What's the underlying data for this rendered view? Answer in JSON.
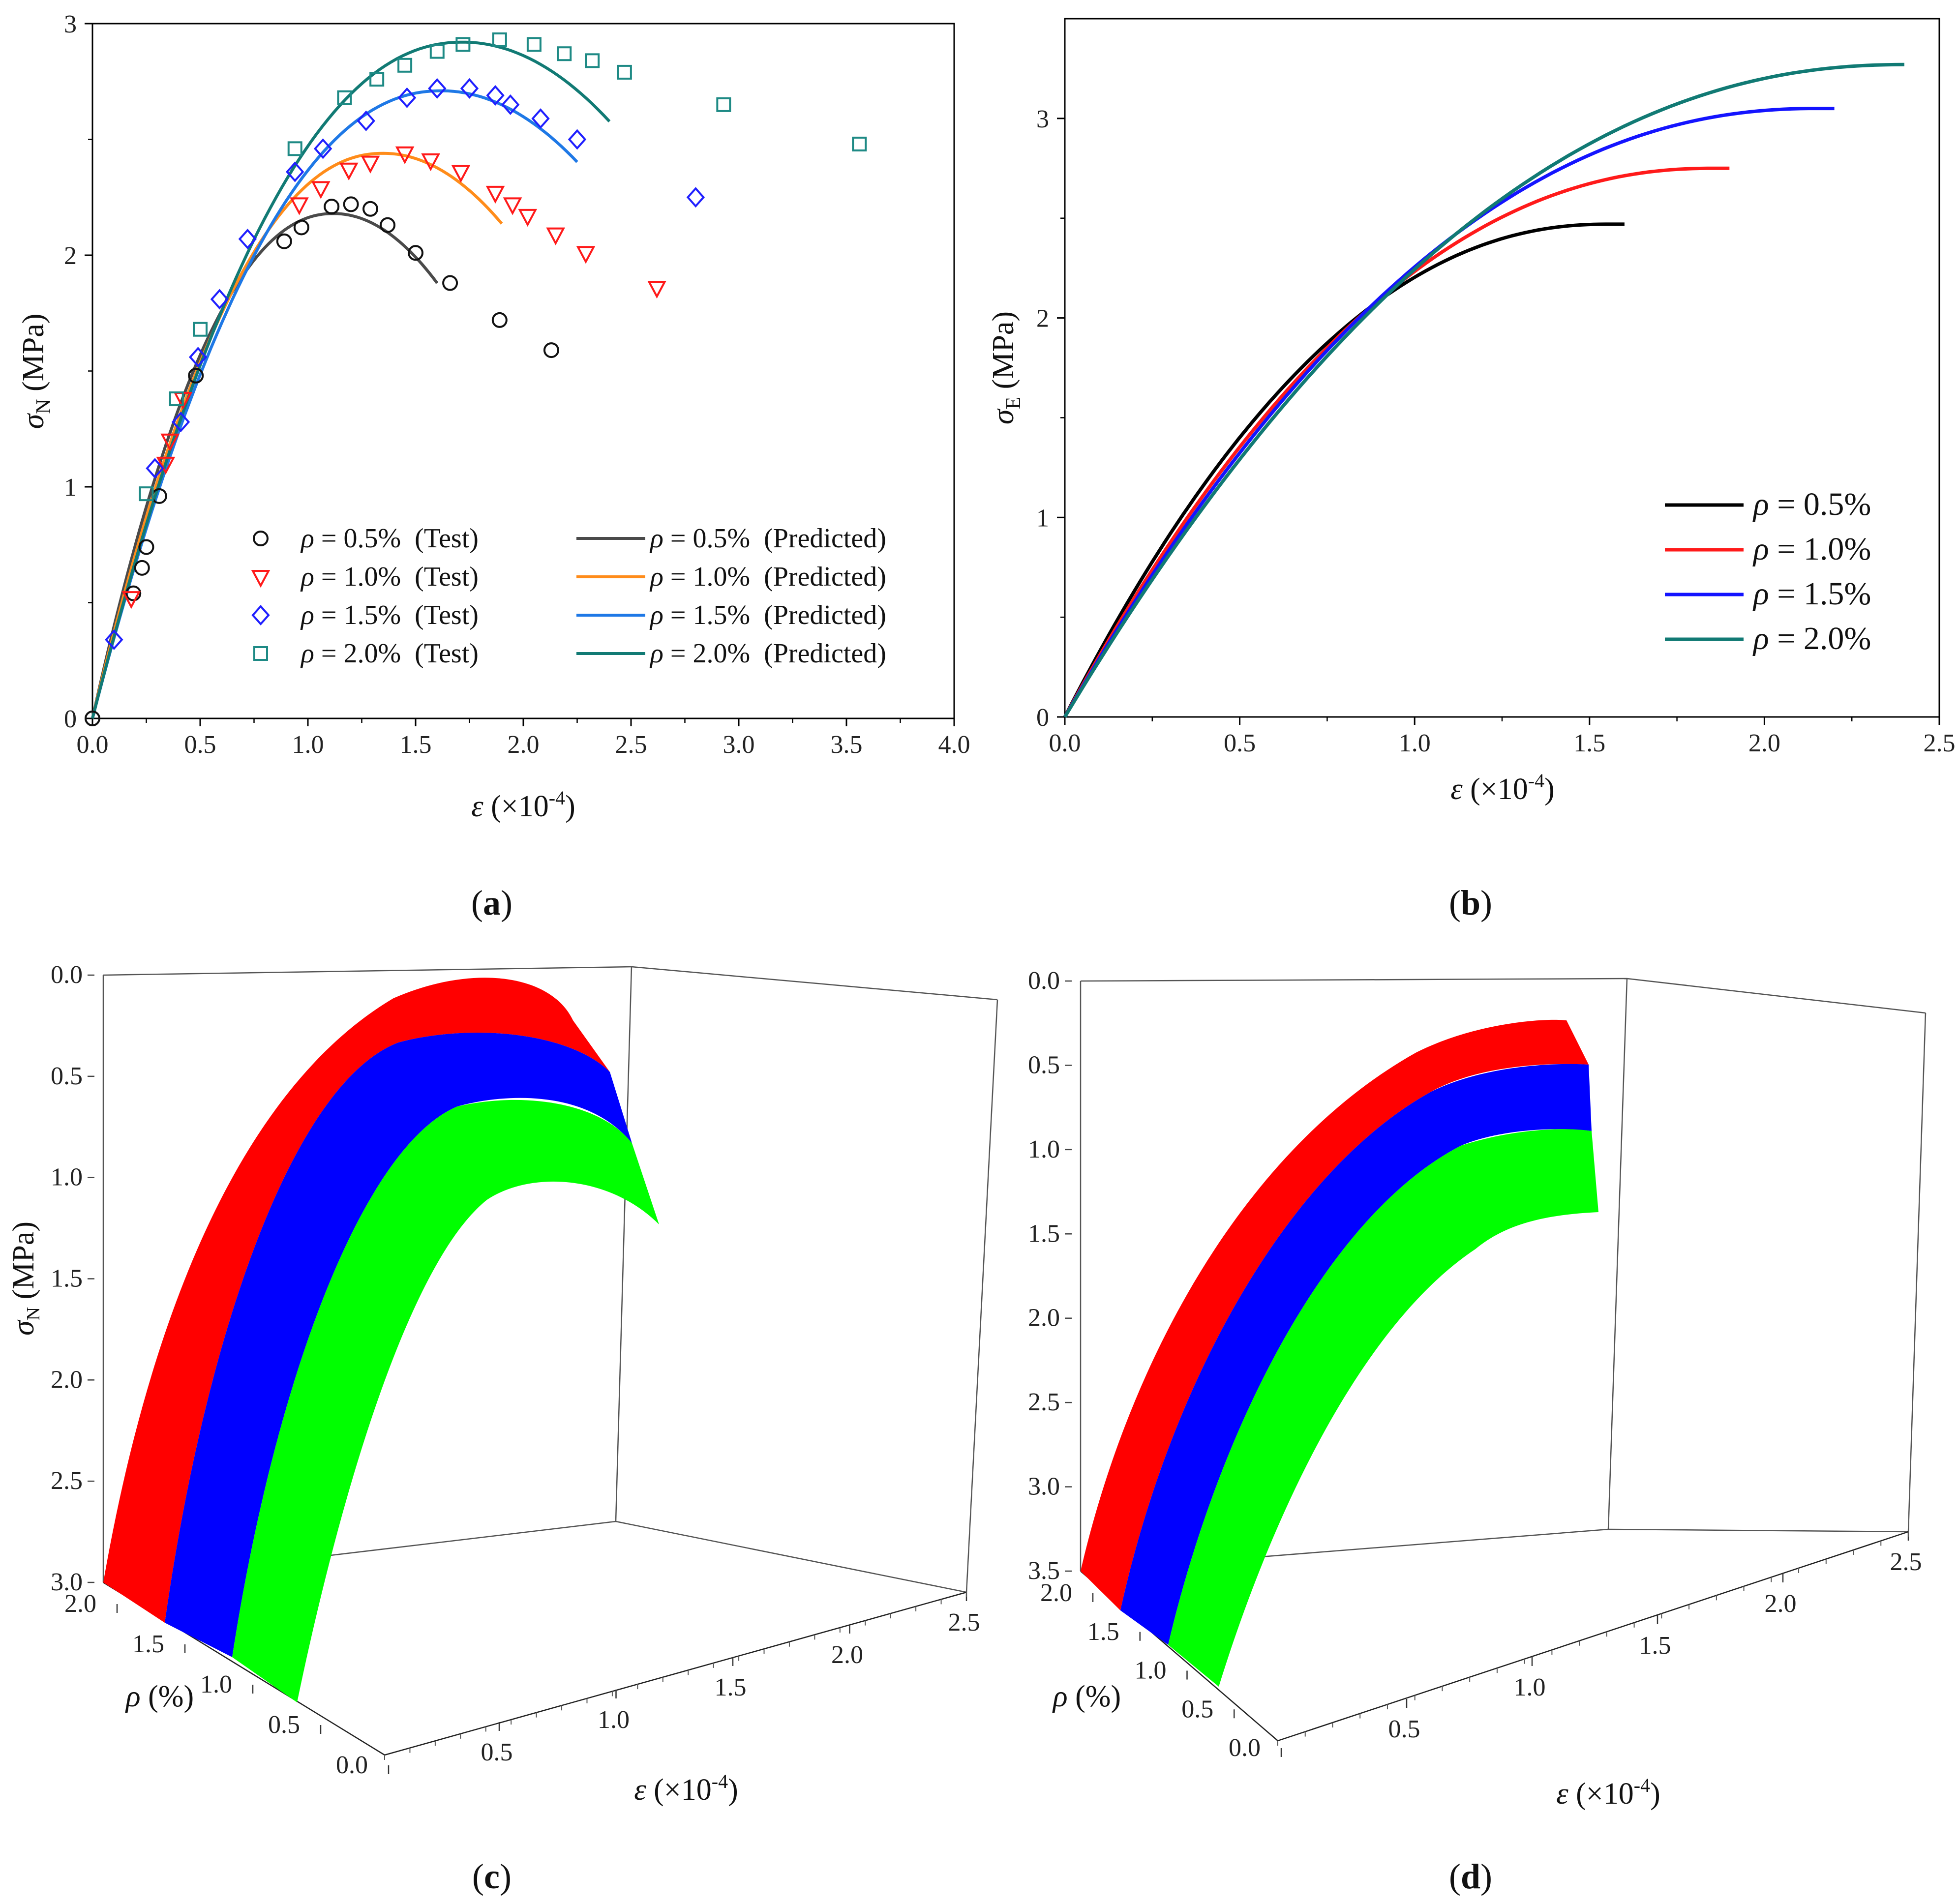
{
  "figure": {
    "panels": [
      {
        "id": "a",
        "label_open": "(",
        "label_letter": "a",
        "label_close": ")"
      },
      {
        "id": "b",
        "label_open": "(",
        "label_letter": "b",
        "label_close": ")"
      },
      {
        "id": "c",
        "label_open": "(",
        "label_letter": "c",
        "label_close": ")"
      },
      {
        "id": "d",
        "label_open": "(",
        "label_letter": "d",
        "label_close": ")"
      }
    ]
  },
  "chart_data": [
    {
      "id": "a",
      "type": "scatter",
      "xlabel": {
        "sym": "ε",
        "pre": " (×10",
        "sup": "-4",
        "post": ")"
      },
      "ylabel": {
        "sym": "σ",
        "sub": "N",
        "post": " (MPa)"
      },
      "xlim": [
        0,
        4.0
      ],
      "ylim": [
        0,
        3
      ],
      "xticks": [
        "0.0",
        "0.5",
        "1.0",
        "1.5",
        "2.0",
        "2.5",
        "3.0",
        "3.5",
        "4.0"
      ],
      "yticks": [
        "0",
        "1",
        "2",
        "3"
      ],
      "colors": {
        "test_0.5": "#111111",
        "test_1.0": "#ff1a1a",
        "test_1.5": "#1f1fff",
        "test_2.0": "#1e8a85",
        "pred_0.5": "#4a4a4a",
        "pred_1.0": "#ff8c1a",
        "pred_1.5": "#1e78e6",
        "pred_2.0": "#117a74"
      },
      "legend": [
        {
          "key": "test_0.5",
          "rho": "ρ",
          "text": " = 0.5%  (Test)",
          "marker": "circle"
        },
        {
          "key": "test_1.0",
          "rho": "ρ",
          "text": " = 1.0%  (Test)",
          "marker": "triangle-down"
        },
        {
          "key": "test_1.5",
          "rho": "ρ",
          "text": " = 1.5%  (Test)",
          "marker": "diamond"
        },
        {
          "key": "test_2.0",
          "rho": "ρ",
          "text": " = 2.0%  (Test)",
          "marker": "square"
        },
        {
          "key": "pred_0.5",
          "rho": "ρ",
          "text": " = 0.5%  (Predicted)",
          "marker": "line"
        },
        {
          "key": "pred_1.0",
          "rho": "ρ",
          "text": " = 1.0%  (Predicted)",
          "marker": "line"
        },
        {
          "key": "pred_1.5",
          "rho": "ρ",
          "text": " = 1.5%  (Predicted)",
          "marker": "line"
        },
        {
          "key": "pred_2.0",
          "rho": "ρ",
          "text": " = 2.0%  (Predicted)",
          "marker": "line"
        }
      ],
      "test_series": [
        {
          "name": "ρ = 0.5% (Test)",
          "key": "test_0.5",
          "marker": "circle",
          "x": [
            0,
            0.19,
            0.23,
            0.25,
            0.31,
            0.48,
            0.89,
            0.97,
            1.11,
            1.2,
            1.29,
            1.37,
            1.5,
            1.66,
            1.89,
            2.13
          ],
          "y": [
            0,
            0.54,
            0.65,
            0.74,
            0.96,
            1.48,
            2.06,
            2.12,
            2.21,
            2.22,
            2.2,
            2.13,
            2.01,
            1.88,
            1.72,
            1.59
          ]
        },
        {
          "name": "ρ = 1.0% (Test)",
          "key": "test_1.0",
          "marker": "triangle-down",
          "x": [
            0.18,
            0.34,
            0.36,
            0.42,
            0.96,
            1.06,
            1.19,
            1.29,
            1.45,
            1.57,
            1.71,
            1.87,
            1.95,
            2.02,
            2.15,
            2.29,
            2.62
          ],
          "y": [
            0.52,
            1.1,
            1.2,
            1.38,
            2.22,
            2.29,
            2.37,
            2.4,
            2.44,
            2.41,
            2.36,
            2.27,
            2.22,
            2.17,
            2.09,
            2.01,
            1.86
          ]
        },
        {
          "name": "ρ = 1.5% (Test)",
          "key": "test_1.5",
          "marker": "diamond",
          "x": [
            0.1,
            0.29,
            0.41,
            0.49,
            0.59,
            0.72,
            0.94,
            1.07,
            1.27,
            1.46,
            1.6,
            1.75,
            1.87,
            1.94,
            2.08,
            2.25,
            2.8
          ],
          "y": [
            0.34,
            1.08,
            1.28,
            1.56,
            1.81,
            2.07,
            2.36,
            2.46,
            2.58,
            2.68,
            2.72,
            2.72,
            2.69,
            2.65,
            2.59,
            2.5,
            2.25
          ]
        },
        {
          "name": "ρ = 2.0% (Test)",
          "key": "test_2.0",
          "marker": "square",
          "x": [
            0.25,
            0.39,
            0.5,
            0.94,
            1.17,
            1.32,
            1.45,
            1.6,
            1.72,
            1.89,
            2.05,
            2.19,
            2.32,
            2.47,
            2.93,
            3.56
          ],
          "y": [
            0.97,
            1.38,
            1.68,
            2.46,
            2.68,
            2.76,
            2.82,
            2.88,
            2.91,
            2.93,
            2.91,
            2.87,
            2.84,
            2.79,
            2.65,
            2.48
          ]
        }
      ],
      "predicted_series": [
        {
          "name": "ρ = 0.5% (Predicted)",
          "key": "pred_0.5",
          "peak_x": 1.12,
          "peak_y": 2.18,
          "end_x": 1.6
        },
        {
          "name": "ρ = 1.0% (Predicted)",
          "key": "pred_1.0",
          "peak_x": 1.35,
          "peak_y": 2.44,
          "end_x": 1.9
        },
        {
          "name": "ρ = 1.5% (Predicted)",
          "key": "pred_1.5",
          "peak_x": 1.62,
          "peak_y": 2.71,
          "end_x": 2.25
        },
        {
          "name": "ρ = 2.0% (Predicted)",
          "key": "pred_2.0",
          "peak_x": 1.72,
          "peak_y": 2.92,
          "end_x": 2.4
        }
      ]
    },
    {
      "id": "b",
      "type": "line",
      "xlabel": {
        "sym": "ε",
        "pre": " (×10",
        "sup": "-4",
        "post": ")"
      },
      "ylabel": {
        "sym": "σ",
        "sub": "E",
        "post": " (MPa)"
      },
      "xlim": [
        0,
        2.5
      ],
      "ylim": [
        0,
        3.5
      ],
      "xticks": [
        "0.0",
        "0.5",
        "1.0",
        "1.5",
        "2.0",
        "2.5"
      ],
      "yticks": [
        "0",
        "1",
        "2",
        "3"
      ],
      "series": [
        {
          "name": "ρ = 0.5%",
          "color": "#000000",
          "peak_x": 1.55,
          "peak_y": 2.47,
          "end_x": 1.6
        },
        {
          "name": "ρ = 1.0%",
          "color": "#ff1a1a",
          "peak_x": 1.85,
          "peak_y": 2.75,
          "end_x": 1.9
        },
        {
          "name": "ρ = 1.5%",
          "color": "#1414ff",
          "peak_x": 2.15,
          "peak_y": 3.05,
          "end_x": 2.2
        },
        {
          "name": "ρ = 2.0%",
          "color": "#117a74",
          "peak_x": 2.4,
          "peak_y": 3.27,
          "end_x": 2.4
        }
      ],
      "legend": [
        {
          "rho": "ρ",
          "text": " = 0.5%",
          "color": "#000000"
        },
        {
          "rho": "ρ",
          "text": " = 1.0%",
          "color": "#ff1a1a"
        },
        {
          "rho": "ρ",
          "text": " = 1.5%",
          "color": "#1414ff"
        },
        {
          "rho": "ρ",
          "text": " = 2.0%",
          "color": "#117a74"
        }
      ]
    },
    {
      "id": "c",
      "type": "surface3d",
      "zlabel": {
        "sym": "σ",
        "sub": "N",
        "post": " (MPa)"
      },
      "ylabel": {
        "sym": "ρ",
        "post": " (%)"
      },
      "xlabel": {
        "sym": "ε",
        "pre": " (×10",
        "sup": "-4",
        "post": ")"
      },
      "zticks": [
        "0.0",
        "0.5",
        "1.0",
        "1.5",
        "2.0",
        "2.5",
        "3.0"
      ],
      "rhoticks": [
        "2.0",
        "1.5",
        "1.0",
        "0.5",
        "0.0"
      ],
      "eticks": [
        "0.5",
        "1.0",
        "1.5",
        "2.0",
        "2.5"
      ],
      "bands": [
        {
          "name": "ρ 1.5–2.0",
          "color": "#ff0000"
        },
        {
          "name": "ρ 1.0–1.5",
          "color": "#0000ff"
        },
        {
          "name": "ρ 0.5–1.0",
          "color": "#00ff00"
        }
      ]
    },
    {
      "id": "d",
      "type": "surface3d",
      "zlabel": {},
      "ylabel": {
        "sym": "ρ",
        "post": " (%)"
      },
      "xlabel": {
        "sym": "ε",
        "pre": " (×10",
        "sup": "-4",
        "post": ")"
      },
      "zticks": [
        "0.0",
        "0.5",
        "1.0",
        "1.5",
        "2.0",
        "2.5",
        "3.0",
        "3.5"
      ],
      "rhoticks": [
        "2.0",
        "1.5",
        "1.0",
        "0.5",
        "0.0"
      ],
      "eticks": [
        "0.5",
        "1.0",
        "1.5",
        "2.0",
        "2.5"
      ],
      "bands": [
        {
          "name": "ρ 1.5–2.0",
          "color": "#ff0000"
        },
        {
          "name": "ρ 1.0–1.5",
          "color": "#0000ff"
        },
        {
          "name": "ρ 0.5–1.0",
          "color": "#00ff00"
        }
      ]
    }
  ]
}
